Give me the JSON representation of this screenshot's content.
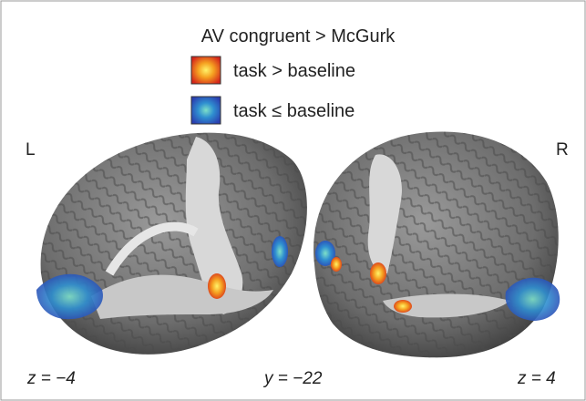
{
  "figure": {
    "title": "AV congruent > McGurk",
    "legend": [
      {
        "label": "task > baseline"
      },
      {
        "label": "task ≤ baseline"
      }
    ],
    "hemisphere_labels": [
      "L",
      "R"
    ],
    "slice_labels": [
      "z = −4",
      "y = −22",
      "z = 4"
    ]
  }
}
